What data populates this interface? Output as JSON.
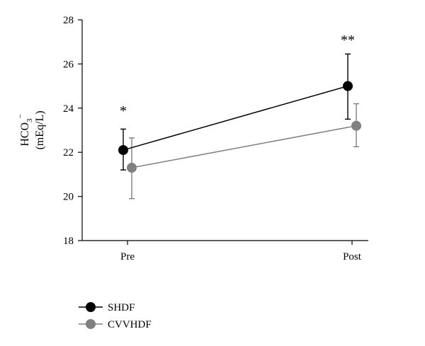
{
  "chart_data": {
    "type": "line",
    "categories": [
      "Pre",
      "Post"
    ],
    "ylabel_line1": "HCO",
    "ylabel_sub": "3",
    "ylabel_sup": "−",
    "ylabel_line2": "(mEq/L)",
    "ylim": [
      18,
      28
    ],
    "yticks": [
      "18",
      "20",
      "22",
      "24",
      "26",
      "28"
    ],
    "grid": false,
    "legend_position": "bottom-left",
    "series": [
      {
        "name": "SHDF",
        "color": "#000000",
        "values": [
          22.1,
          25.0
        ],
        "err_low": [
          21.2,
          23.5
        ],
        "err_high": [
          23.05,
          26.45
        ]
      },
      {
        "name": "CVVHDF",
        "color": "#808080",
        "values": [
          21.3,
          23.2
        ],
        "err_low": [
          19.9,
          22.25
        ],
        "err_high": [
          22.65,
          24.2
        ]
      }
    ],
    "annotations": [
      {
        "category": "Pre",
        "text": "*",
        "y": 24.0
      },
      {
        "category": "Post",
        "text": "**",
        "y": 27.2
      }
    ]
  }
}
